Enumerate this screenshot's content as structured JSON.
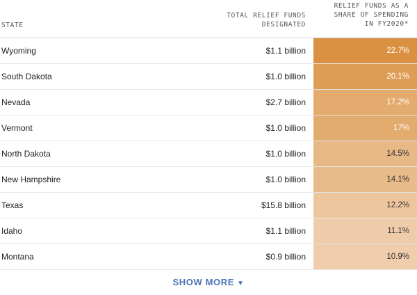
{
  "headers": {
    "state": "STATE",
    "funds_line1": "TOTAL RELIEF FUNDS",
    "funds_line2": "DESIGNATED",
    "share_line1": "RELIEF FUNDS AS A",
    "share_line2": "SHARE OF SPENDING",
    "share_line3": "IN FY2020*"
  },
  "rows": [
    {
      "state": "Wyoming",
      "funds": "$1.1 billion",
      "share": "22.7%",
      "color": "#d99141",
      "text_color": "#ffffff"
    },
    {
      "state": "South Dakota",
      "funds": "$1.0 billion",
      "share": "20.1%",
      "color": "#de9d55",
      "text_color": "#ffffff"
    },
    {
      "state": "Nevada",
      "funds": "$2.7 billion",
      "share": "17.2%",
      "color": "#e3ab6d",
      "text_color": "#ffffff"
    },
    {
      "state": "Vermont",
      "funds": "$1.0 billion",
      "share": "17%",
      "color": "#e3ac6f",
      "text_color": "#ffffff"
    },
    {
      "state": "North Dakota",
      "funds": "$1.0 billion",
      "share": "14.5%",
      "color": "#e8b986",
      "text_color": "#333333"
    },
    {
      "state": "New Hampshire",
      "funds": "$1.0 billion",
      "share": "14.1%",
      "color": "#e9bb8a",
      "text_color": "#333333"
    },
    {
      "state": "Texas",
      "funds": "$15.8 billion",
      "share": "12.2%",
      "color": "#edc69e",
      "text_color": "#333333"
    },
    {
      "state": "Idaho",
      "funds": "$1.1 billion",
      "share": "11.1%",
      "color": "#efcca9",
      "text_color": "#333333"
    },
    {
      "state": "Montana",
      "funds": "$0.9 billion",
      "share": "10.9%",
      "color": "#f0cdab",
      "text_color": "#333333"
    }
  ],
  "show_more": {
    "label": "SHOW MORE",
    "arrow": "▼",
    "color": "#4a74b8"
  }
}
